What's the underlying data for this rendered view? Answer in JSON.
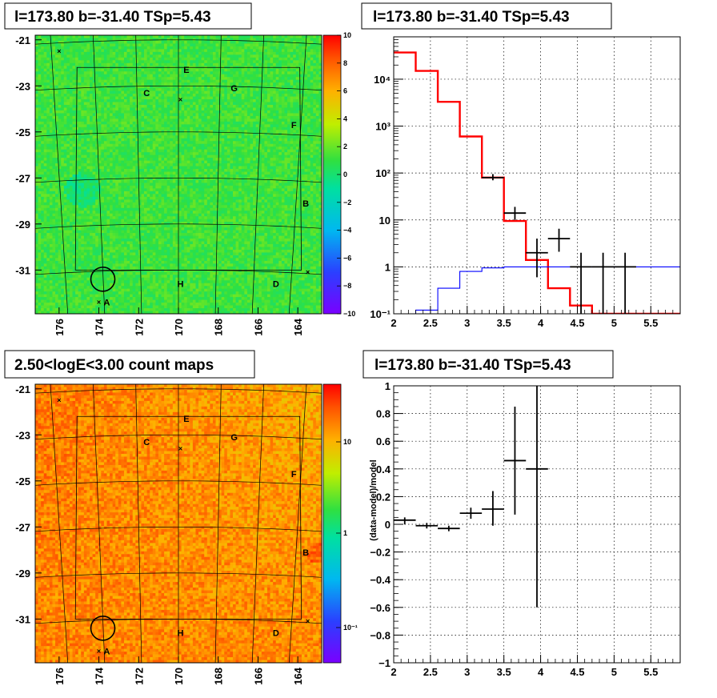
{
  "colors": {
    "model_red": "#ff0000",
    "model_blue": "#0000ff",
    "data_black": "#000000"
  },
  "chart_data": [
    {
      "type": "heatmap",
      "title": "l=173.80 b=-31.40 TSp=5.43",
      "xlim": [
        177.2,
        162.8
      ],
      "ylim": [
        -32.9,
        -20.8
      ],
      "x_ticks": [
        "176",
        "174",
        "172",
        "170",
        "168",
        "166",
        "164"
      ],
      "y_ticks": [
        "-21",
        "-23",
        "-25",
        "-27",
        "-29",
        "-31"
      ],
      "colorbar": {
        "min": -10,
        "max": 10,
        "scale": "linear",
        "ticks": [
          "10",
          "8",
          "6",
          "4",
          "2",
          "0",
          "−2",
          "−4",
          "−6",
          "−8",
          "−10"
        ]
      },
      "markers": [
        {
          "label": "A",
          "lon": 173.6,
          "lat": -32.4
        },
        {
          "label": "B",
          "lon": 163.6,
          "lat": -28.1
        },
        {
          "label": "C",
          "lon": 171.6,
          "lat": -23.3
        },
        {
          "label": "D",
          "lon": 165.1,
          "lat": -31.6
        },
        {
          "label": "E",
          "lon": 169.6,
          "lat": -22.3
        },
        {
          "label": "F",
          "lon": 164.2,
          "lat": -24.7
        },
        {
          "label": "G",
          "lon": 167.2,
          "lat": -23.1
        },
        {
          "label": "H",
          "lon": 169.9,
          "lat": -31.6
        }
      ]
    },
    {
      "type": "line",
      "title": "l=173.80 b=-31.40 TSp=5.43",
      "xlim": [
        2.0,
        5.9
      ],
      "ylim": [
        0.1,
        80000
      ],
      "yscale": "log",
      "x_ticks": [
        "2",
        "2.5",
        "3",
        "3.5",
        "4",
        "4.5",
        "5",
        "5.5"
      ],
      "y_ticks": [
        "10⁻¹",
        "1",
        "10",
        "10²",
        "10³",
        "10⁴"
      ],
      "grid": true,
      "series": [
        {
          "style": "step",
          "color": "#ff0000",
          "edges": [
            2.0,
            2.3,
            2.6,
            2.9,
            3.2,
            3.5,
            3.8,
            4.1,
            4.4,
            4.7,
            5.9
          ],
          "values": [
            37000,
            15000,
            3300,
            600,
            80,
            9.5,
            1.4,
            0.35,
            0.15,
            0.1
          ]
        },
        {
          "style": "step",
          "color": "#0000ff",
          "edges": [
            2.0,
            2.3,
            2.6,
            2.9,
            3.2,
            3.5,
            3.8,
            4.1,
            4.4,
            4.7,
            5.9
          ],
          "values": [
            0.1,
            0.12,
            0.35,
            0.8,
            0.95,
            1.0,
            1.0,
            1.0,
            1.0,
            1.0
          ]
        },
        {
          "style": "errorbar",
          "color": "#000000",
          "x": [
            3.35,
            3.65,
            3.95,
            4.25,
            4.55,
            4.85,
            5.15
          ],
          "y": [
            80,
            14,
            2,
            4,
            1,
            1,
            1
          ],
          "xerr": 0.15,
          "ylow": [
            70,
            10,
            0.6,
            2.1,
            0.1,
            0.1,
            0.1
          ],
          "yhigh": [
            95,
            19,
            4,
            6.5,
            2,
            2,
            2
          ]
        }
      ]
    },
    {
      "type": "heatmap",
      "title": "2.50<logE<3.00 count maps",
      "xlim": [
        177.2,
        162.8
      ],
      "ylim": [
        -32.9,
        -20.8
      ],
      "x_ticks": [
        "176",
        "174",
        "172",
        "170",
        "168",
        "166",
        "164"
      ],
      "y_ticks": [
        "-21",
        "-23",
        "-25",
        "-27",
        "-29",
        "-31"
      ],
      "colorbar": {
        "scale": "log",
        "ticks": [
          "10",
          "1",
          "10⁻¹"
        ]
      },
      "markers": [
        {
          "label": "A",
          "lon": 173.6,
          "lat": -32.4
        },
        {
          "label": "B",
          "lon": 163.6,
          "lat": -28.1
        },
        {
          "label": "C",
          "lon": 171.6,
          "lat": -23.3
        },
        {
          "label": "D",
          "lon": 165.1,
          "lat": -31.6
        },
        {
          "label": "E",
          "lon": 169.6,
          "lat": -22.3
        },
        {
          "label": "F",
          "lon": 164.2,
          "lat": -24.7
        },
        {
          "label": "G",
          "lon": 167.2,
          "lat": -23.1
        },
        {
          "label": "H",
          "lon": 169.9,
          "lat": -31.6
        }
      ]
    },
    {
      "type": "scatter",
      "title": "l=173.80 b=-31.40 TSp=5.43",
      "ylabel": "(data-model)/model",
      "xlim": [
        2.0,
        5.9
      ],
      "ylim": [
        -1.0,
        1.0
      ],
      "x_ticks": [
        "2",
        "2.5",
        "3",
        "3.5",
        "4",
        "4.5",
        "5",
        "5.5"
      ],
      "y_ticks": [
        "−1",
        "−0.8",
        "−0.6",
        "−0.4",
        "−0.2",
        "0",
        "0.2",
        "0.4",
        "0.6",
        "0.8",
        "1"
      ],
      "grid": true,
      "series": [
        {
          "style": "errorbar",
          "color": "#000000",
          "x": [
            2.15,
            2.45,
            2.75,
            3.05,
            3.35,
            3.65,
            3.95
          ],
          "y": [
            0.03,
            -0.01,
            -0.03,
            0.08,
            0.11,
            0.46,
            0.4
          ],
          "xerr": 0.15,
          "ylow": [
            0.0,
            -0.03,
            -0.05,
            0.04,
            -0.01,
            0.07,
            -0.6
          ],
          "yhigh": [
            0.05,
            0.01,
            -0.01,
            0.12,
            0.24,
            0.85,
            1.0
          ]
        }
      ]
    }
  ]
}
